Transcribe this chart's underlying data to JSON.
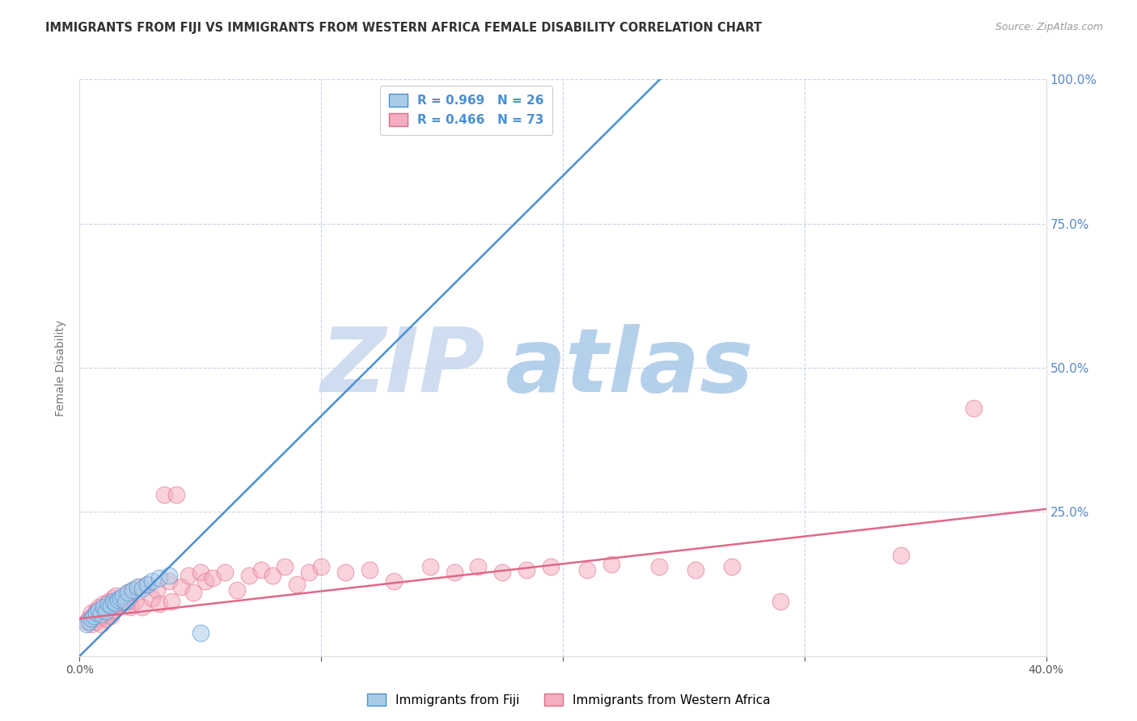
{
  "title": "IMMIGRANTS FROM FIJI VS IMMIGRANTS FROM WESTERN AFRICA FEMALE DISABILITY CORRELATION CHART",
  "source": "Source: ZipAtlas.com",
  "ylabel": "Female Disability",
  "xlim": [
    0.0,
    0.4
  ],
  "ylim": [
    0.0,
    1.0
  ],
  "xticks": [
    0.0,
    0.1,
    0.2,
    0.3,
    0.4
  ],
  "yticks": [
    0.0,
    0.25,
    0.5,
    0.75,
    1.0
  ],
  "fiji_color": "#a8cce8",
  "wa_color": "#f5aec0",
  "fiji_line_color": "#4a8fd4",
  "wa_line_color": "#e06888",
  "fiji_R": 0.969,
  "fiji_N": 26,
  "wa_R": 0.466,
  "wa_N": 73,
  "background_color": "#ffffff",
  "grid_color": "#c8d4e8",
  "watermark_zip_color": "#c8d8ee",
  "watermark_atlas_color": "#a8c8e8",
  "fiji_scatter_x": [
    0.003,
    0.004,
    0.005,
    0.006,
    0.007,
    0.008,
    0.009,
    0.01,
    0.011,
    0.012,
    0.013,
    0.014,
    0.015,
    0.016,
    0.017,
    0.018,
    0.019,
    0.02,
    0.022,
    0.024,
    0.026,
    0.028,
    0.03,
    0.033,
    0.037,
    0.05
  ],
  "fiji_scatter_y": [
    0.055,
    0.06,
    0.065,
    0.07,
    0.075,
    0.08,
    0.072,
    0.085,
    0.078,
    0.09,
    0.088,
    0.095,
    0.092,
    0.098,
    0.1,
    0.105,
    0.095,
    0.11,
    0.115,
    0.12,
    0.118,
    0.125,
    0.13,
    0.135,
    0.14,
    0.04
  ],
  "wa_scatter_x": [
    0.003,
    0.004,
    0.005,
    0.005,
    0.006,
    0.007,
    0.007,
    0.008,
    0.008,
    0.009,
    0.009,
    0.01,
    0.01,
    0.011,
    0.011,
    0.012,
    0.012,
    0.013,
    0.013,
    0.014,
    0.014,
    0.015,
    0.015,
    0.016,
    0.017,
    0.018,
    0.019,
    0.02,
    0.021,
    0.022,
    0.023,
    0.025,
    0.026,
    0.028,
    0.03,
    0.032,
    0.033,
    0.035,
    0.037,
    0.038,
    0.04,
    0.042,
    0.045,
    0.047,
    0.05,
    0.052,
    0.055,
    0.06,
    0.065,
    0.07,
    0.075,
    0.08,
    0.085,
    0.09,
    0.095,
    0.1,
    0.11,
    0.12,
    0.13,
    0.145,
    0.155,
    0.165,
    0.175,
    0.185,
    0.195,
    0.21,
    0.22,
    0.24,
    0.255,
    0.27,
    0.29,
    0.34,
    0.37
  ],
  "wa_scatter_y": [
    0.06,
    0.065,
    0.055,
    0.075,
    0.07,
    0.06,
    0.08,
    0.065,
    0.085,
    0.055,
    0.075,
    0.07,
    0.09,
    0.065,
    0.08,
    0.075,
    0.095,
    0.07,
    0.085,
    0.08,
    0.1,
    0.09,
    0.105,
    0.085,
    0.095,
    0.1,
    0.09,
    0.11,
    0.085,
    0.115,
    0.095,
    0.12,
    0.085,
    0.125,
    0.1,
    0.115,
    0.09,
    0.28,
    0.13,
    0.095,
    0.28,
    0.12,
    0.14,
    0.11,
    0.145,
    0.13,
    0.135,
    0.145,
    0.115,
    0.14,
    0.15,
    0.14,
    0.155,
    0.125,
    0.145,
    0.155,
    0.145,
    0.15,
    0.13,
    0.155,
    0.145,
    0.155,
    0.145,
    0.15,
    0.155,
    0.15,
    0.16,
    0.155,
    0.15,
    0.155,
    0.095,
    0.175,
    0.43
  ],
  "fiji_line_x0": 0.0,
  "fiji_line_y0": 0.0,
  "fiji_line_x1": 0.245,
  "fiji_line_y1": 1.02,
  "wa_line_x0": 0.0,
  "wa_line_y0": 0.065,
  "wa_line_x1": 0.4,
  "wa_line_y1": 0.255
}
